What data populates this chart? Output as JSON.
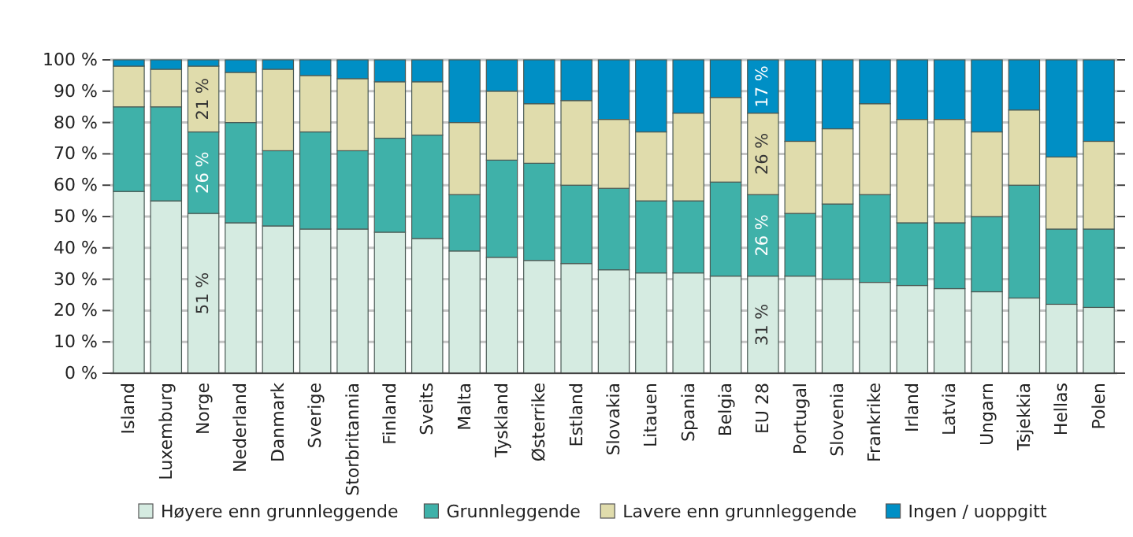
{
  "chart_data": {
    "type": "bar",
    "stacked": true,
    "categories": [
      "Island",
      "Luxemburg",
      "Norge",
      "Nederland",
      "Danmark",
      "Sverige",
      "Storbritannia",
      "Finland",
      "Sveits",
      "Malta",
      "Tyskland",
      "Østerrike",
      "Estland",
      "Slovakia",
      "Litauen",
      "Spania",
      "Belgia",
      "EU 28",
      "Portugal",
      "Slovenia",
      "Frankrike",
      "Irland",
      "Latvia",
      "Ungarn",
      "Tsjekkia",
      "Hellas",
      "Polen"
    ],
    "series": [
      {
        "name": "Høyere enn grunnleggende",
        "color": "#d5ebe1",
        "values": [
          58,
          55,
          51,
          48,
          47,
          46,
          46,
          45,
          43,
          39,
          37,
          36,
          35,
          33,
          32,
          32,
          31,
          31,
          31,
          30,
          29,
          28,
          27,
          26,
          24,
          22,
          21
        ],
        "value_labels": [
          null,
          null,
          "51 %",
          null,
          null,
          null,
          null,
          null,
          null,
          null,
          null,
          null,
          null,
          null,
          null,
          null,
          null,
          "31 %",
          null,
          null,
          null,
          null,
          null,
          null,
          null,
          null,
          null
        ]
      },
      {
        "name": "Grunnleggende",
        "color": "#3fb1a9",
        "values": [
          27,
          30,
          26,
          32,
          24,
          31,
          25,
          30,
          33,
          18,
          31,
          31,
          25,
          26,
          23,
          23,
          30,
          26,
          20,
          24,
          28,
          20,
          21,
          24,
          36,
          24,
          25
        ],
        "value_labels": [
          null,
          null,
          "26 %",
          null,
          null,
          null,
          null,
          null,
          null,
          null,
          null,
          null,
          null,
          null,
          null,
          null,
          null,
          "26 %",
          null,
          null,
          null,
          null,
          null,
          null,
          null,
          null,
          null
        ]
      },
      {
        "name": "Lavere enn grunnleggende",
        "color": "#e0dcac",
        "values": [
          13,
          12,
          21,
          16,
          26,
          18,
          23,
          18,
          17,
          23,
          22,
          19,
          27,
          22,
          22,
          28,
          27,
          26,
          23,
          24,
          29,
          33,
          33,
          27,
          24,
          23,
          28
        ],
        "value_labels": [
          null,
          null,
          "21 %",
          null,
          null,
          null,
          null,
          null,
          null,
          null,
          null,
          null,
          null,
          null,
          null,
          null,
          null,
          "26 %",
          null,
          null,
          null,
          null,
          null,
          null,
          null,
          null,
          null
        ]
      },
      {
        "name": "Ingen / uoppgitt",
        "color": "#008fc5",
        "values": [
          2,
          3,
          2,
          4,
          3,
          5,
          6,
          7,
          7,
          20,
          10,
          14,
          13,
          19,
          23,
          17,
          12,
          17,
          26,
          22,
          14,
          19,
          19,
          23,
          16,
          31,
          26
        ],
        "value_labels": [
          null,
          null,
          null,
          null,
          null,
          null,
          null,
          null,
          null,
          null,
          null,
          null,
          null,
          null,
          null,
          null,
          null,
          "17 %",
          null,
          null,
          null,
          null,
          null,
          null,
          null,
          null,
          null
        ]
      }
    ],
    "ylim": [
      0,
      100
    ],
    "yticks": [
      {
        "value": 0,
        "label": "0 %"
      },
      {
        "value": 10,
        "label": "10 %"
      },
      {
        "value": 20,
        "label": "20 %"
      },
      {
        "value": 30,
        "label": "30 %"
      },
      {
        "value": 40,
        "label": "40 %"
      },
      {
        "value": 50,
        "label": "50 %"
      },
      {
        "value": 60,
        "label": "60 %"
      },
      {
        "value": 70,
        "label": "70 %"
      },
      {
        "value": 80,
        "label": "80 %"
      },
      {
        "value": 90,
        "label": "90 %"
      },
      {
        "value": 100,
        "label": "100 %"
      }
    ],
    "grid": "y",
    "legend": "bottom"
  }
}
